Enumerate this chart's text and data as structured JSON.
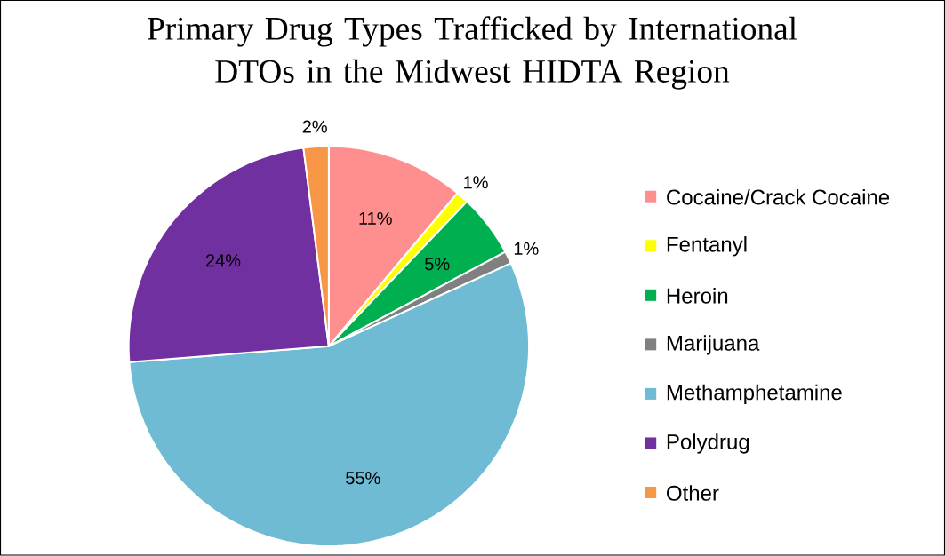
{
  "chart_data": {
    "type": "pie",
    "title": "Primary Drug Types Trafficked by International DTOs in the Midwest HIDTA Region",
    "categories": [
      "Cocaine/Crack Cocaine",
      "Fentanyl",
      "Heroin",
      "Marijuana",
      "Methamphetamine",
      "Polydrug",
      "Other"
    ],
    "values": [
      11,
      1,
      5,
      1,
      55,
      24,
      2
    ],
    "value_labels": [
      "11%",
      "1%",
      "5%",
      "1%",
      "55%",
      "24%",
      "2%"
    ],
    "colors": [
      "#ff8f8f",
      "#ffff00",
      "#00b050",
      "#808080",
      "#6fbbd3",
      "#7030a0",
      "#f79646"
    ],
    "legend": "right"
  }
}
